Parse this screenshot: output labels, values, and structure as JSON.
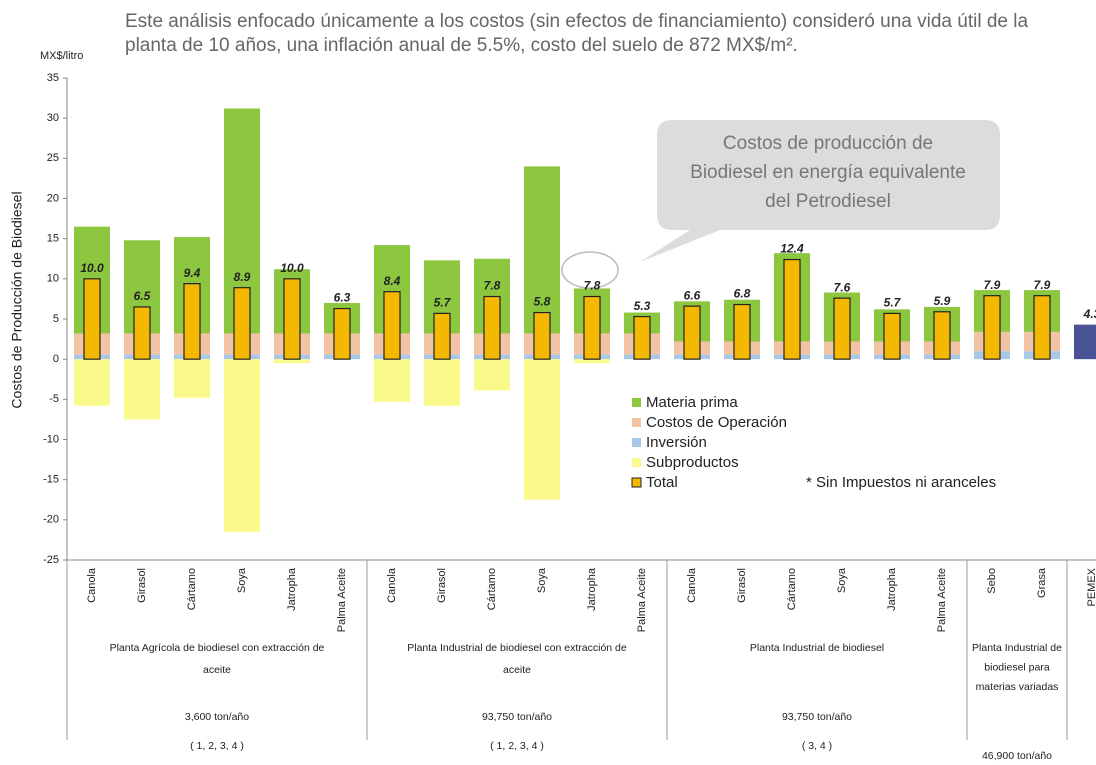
{
  "chart_data": {
    "type": "stacked_bar",
    "title": "Este análisis enfocado únicamente a los costos (sin efectos de financiamiento) consideró una vida útil de la planta de 10 años, una inflación anual de 5.5%, costo del suelo de 872 MX$/m².",
    "y_unit": "MX$/litro",
    "y_label": "Costos de Producción de Biodiesel",
    "callout": "Costos de producción de Biodiesel en energía equivalente del Petrodiesel",
    "note": "* Sin Impuestos ni aranceles",
    "categories": [
      "Canola",
      "Girasol",
      "Cártamo",
      "Soya",
      "Jatropha",
      "Palma Aceite",
      "Canola",
      "Girasol",
      "Cártamo",
      "Soya",
      "Jatropha",
      "Palma Aceite",
      "Canola",
      "Girasol",
      "Cártamo",
      "Soya",
      "Jatropha",
      "Palma Aceite",
      "Sebo",
      "Grasa",
      "PEMEX"
    ],
    "series": [
      {
        "name": "Materia prima",
        "color": "#8dc63f",
        "values": [
          13.3,
          11.6,
          12.0,
          28.0,
          8.0,
          3.8,
          11.0,
          9.1,
          9.3,
          20.8,
          5.6,
          2.6,
          5.0,
          5.2,
          11.0,
          6.1,
          4.0,
          4.3,
          5.2,
          5.2,
          null
        ]
      },
      {
        "name": "Costos de Operación",
        "color": "#f2c4a4",
        "values": [
          2.6,
          2.6,
          2.6,
          2.6,
          2.6,
          2.6,
          2.6,
          2.6,
          2.6,
          2.6,
          2.6,
          2.6,
          1.6,
          1.6,
          1.6,
          1.6,
          1.6,
          1.6,
          2.4,
          2.4,
          null
        ]
      },
      {
        "name": "Inversión",
        "color": "#a9c8e8",
        "values": [
          0.6,
          0.6,
          0.6,
          0.6,
          0.6,
          0.6,
          0.6,
          0.6,
          0.6,
          0.6,
          0.6,
          0.6,
          0.6,
          0.6,
          0.6,
          0.6,
          0.6,
          0.6,
          1.0,
          1.0,
          null
        ]
      },
      {
        "name": "Subproductos",
        "color": "#fafa8c",
        "values": [
          -5.8,
          -7.5,
          -4.8,
          -21.5,
          -0.5,
          0,
          -5.3,
          -5.8,
          -3.9,
          -17.5,
          -0.5,
          0,
          0,
          0,
          0,
          0,
          0,
          0,
          0,
          0,
          null
        ]
      }
    ],
    "total": {
      "name": "Total",
      "color": "#f5b800",
      "bar_colors": [
        "#f5b800",
        "#f5b800",
        "#f5b800",
        "#f5b800",
        "#f5b800",
        "#f5b800",
        "#f5b800",
        "#f5b800",
        "#f5b800",
        "#f5b800",
        "#f5b800",
        "#f5b800",
        "#f5b800",
        "#f5b800",
        "#f5b800",
        "#f5b800",
        "#f5b800",
        "#f5b800",
        "#f5b800",
        "#f5b800",
        "#4a5296"
      ],
      "values": [
        10.0,
        6.5,
        9.4,
        8.9,
        10.0,
        6.3,
        8.4,
        5.7,
        7.8,
        5.8,
        7.8,
        5.3,
        6.6,
        6.8,
        12.4,
        7.6,
        5.7,
        5.9,
        7.9,
        7.9,
        4.3
      ],
      "value_labels": [
        "10.0",
        "6.5",
        "9.4",
        "8.9",
        "10.0",
        "6.3",
        "8.4",
        "5.7",
        "7.8",
        "5.8",
        "7.8",
        "5.3",
        "6.6",
        "6.8",
        "12.4",
        "7.6",
        "5.7",
        "5.9",
        "7.9",
        "7.9",
        "4.3"
      ]
    },
    "groups": [
      {
        "label": "Planta Agrícola de biodiesel con extracción de aceite",
        "capacity": "3,600 ton/año",
        "refs": "( 1, 2, 3, 4 )"
      },
      {
        "label": "Planta Industrial de biodiesel con extracción de aceite",
        "capacity": "93,750 ton/año",
        "refs": "( 1, 2, 3, 4 )"
      },
      {
        "label": "Planta Industrial de biodiesel",
        "capacity": "93,750 ton/año",
        "refs": "( 3, 4 )"
      },
      {
        "label": "Planta Industrial de biodiesel para materias variadas",
        "capacity": "46,900 ton/año"
      }
    ],
    "ylim": [
      -25,
      35
    ],
    "yticks": [
      -25,
      -20,
      -15,
      -10,
      -5,
      0,
      5,
      10,
      15,
      20,
      25,
      30,
      35
    ]
  }
}
